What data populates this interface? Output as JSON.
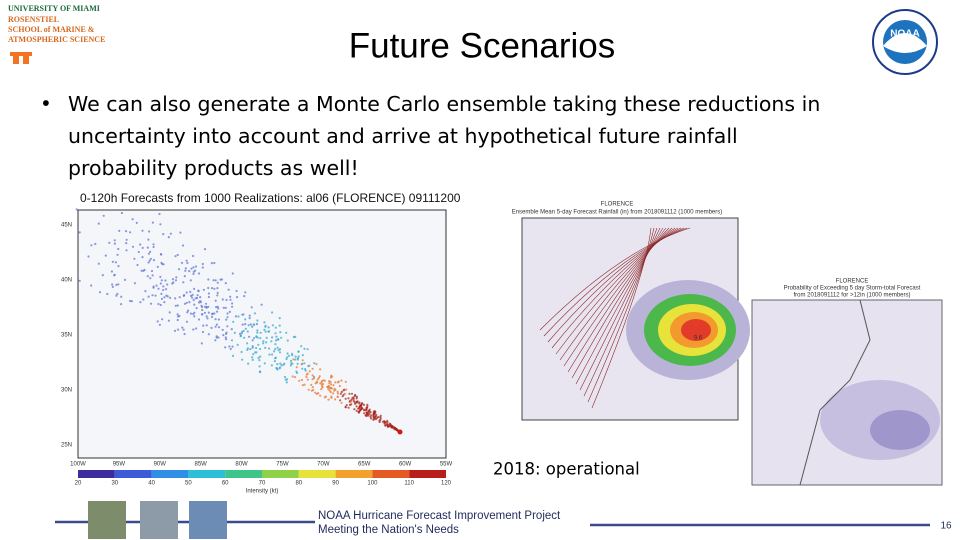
{
  "header": {
    "logo_lines": [
      "UNIVERSITY OF MIAMI",
      "ROSENSTIEL",
      "SCHOOL of MARINE &",
      "ATMOSPHERIC SCIENCE"
    ],
    "noaa": "NOAA",
    "title": "Future Scenarios"
  },
  "bullet": {
    "lines": [
      "We can also generate a Monte Carlo ensemble taking these reductions in",
      "uncertainty into account and arrive at hypothetical future rainfall",
      "probability products as well!"
    ]
  },
  "figure_left": {
    "title": "0-120h Forecasts from 1000 Realizations: al06 (FLORENCE) 09111200",
    "lon_labels": [
      "100W",
      "95W",
      "90W",
      "85W",
      "80W",
      "75W",
      "70W",
      "65W",
      "60W",
      "55W"
    ],
    "lat_labels": [
      "45N",
      "40N",
      "35N",
      "30N",
      "25N"
    ],
    "colorbar_ticks": [
      "20",
      "30",
      "40",
      "50",
      "60",
      "70",
      "80",
      "90",
      "100",
      "110",
      "120"
    ],
    "colorbar_label": "Intensity (kt)"
  },
  "figure_mid": {
    "title_lines": [
      "FLORENCE",
      "Ensemble Mean 5-day Forecast Rainfall (in) from 2018091112 (1000 members)"
    ],
    "peak": "9.6"
  },
  "figure_right": {
    "title_lines": [
      "FLORENCE",
      "Probability of Exceeding 5 day Storm-total Forecast",
      "from 2018091112 for >12in (1000 members)"
    ]
  },
  "caption": "2018: operational",
  "footer": {
    "lines": [
      "NOAA Hurricane Forecast Improvement Project",
      "Meeting the Nation's Needs"
    ],
    "page": "16"
  }
}
